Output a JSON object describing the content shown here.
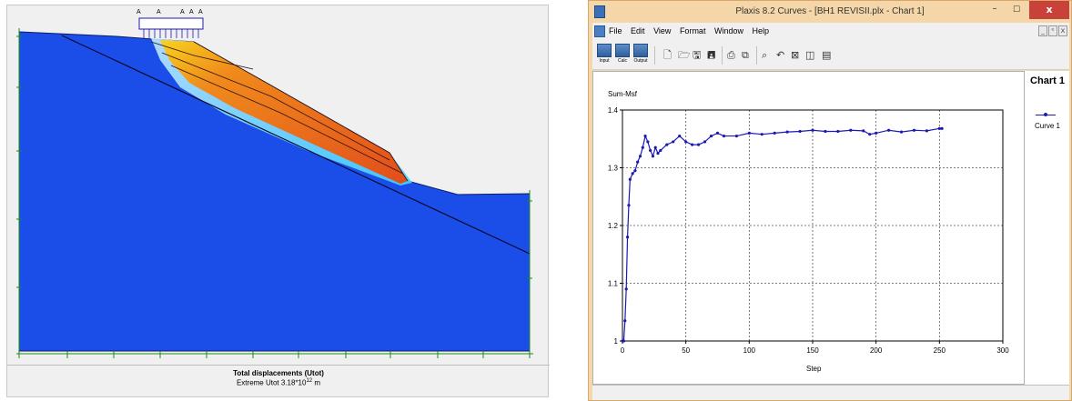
{
  "model": {
    "load_labels": [
      "A",
      "A",
      "A",
      "A",
      "A"
    ],
    "caption_title": "Total displacements (Utot)",
    "caption_prefix": "Extreme Utot 3.18*10",
    "caption_exp": "12",
    "caption_unit": " m",
    "colors": {
      "soil": "#1b4de8",
      "background": "#f0f0f0",
      "slip_hot": "#e8511c",
      "slip_warm": "#f7c71a"
    }
  },
  "curves_window": {
    "title": "Plaxis 8.2 Curves - [BH1 REVISII.plx - Chart 1]",
    "close_glyph": "x",
    "menu": [
      "File",
      "Edit",
      "View",
      "Format",
      "Window",
      "Help"
    ],
    "toolbar_big": [
      "Input",
      "Calc",
      "Output"
    ],
    "legend_title": "Chart 1",
    "legend_series": "Curve 1"
  },
  "chart_data": {
    "type": "line",
    "ylabel": "Sum-Msf",
    "xlabel": "Step",
    "xlim": [
      0,
      300
    ],
    "ylim": [
      1.0,
      1.4
    ],
    "xticks": [
      "0",
      "50",
      "100",
      "150",
      "200",
      "250",
      "300"
    ],
    "yticks": [
      "1",
      "1.1",
      "1.2",
      "1.3",
      "1.4"
    ],
    "grid": true,
    "legend": "right",
    "series": [
      {
        "name": "Curve 1",
        "color": "#1b1bb4",
        "x": [
          0,
          1,
          2,
          3,
          4,
          5,
          6,
          8,
          10,
          12,
          14,
          16,
          18,
          20,
          22,
          24,
          26,
          28,
          30,
          35,
          40,
          45,
          50,
          55,
          60,
          65,
          70,
          75,
          80,
          90,
          100,
          110,
          120,
          130,
          140,
          150,
          160,
          170,
          180,
          190,
          195,
          200,
          210,
          220,
          230,
          240,
          250,
          252
        ],
        "values": [
          1.0,
          1.0,
          1.035,
          1.09,
          1.18,
          1.235,
          1.28,
          1.29,
          1.295,
          1.31,
          1.32,
          1.335,
          1.355,
          1.345,
          1.33,
          1.32,
          1.335,
          1.325,
          1.33,
          1.34,
          1.345,
          1.355,
          1.345,
          1.34,
          1.34,
          1.345,
          1.355,
          1.36,
          1.355,
          1.355,
          1.36,
          1.358,
          1.36,
          1.362,
          1.363,
          1.365,
          1.363,
          1.363,
          1.365,
          1.364,
          1.358,
          1.36,
          1.365,
          1.362,
          1.365,
          1.364,
          1.368,
          1.368
        ]
      }
    ]
  }
}
